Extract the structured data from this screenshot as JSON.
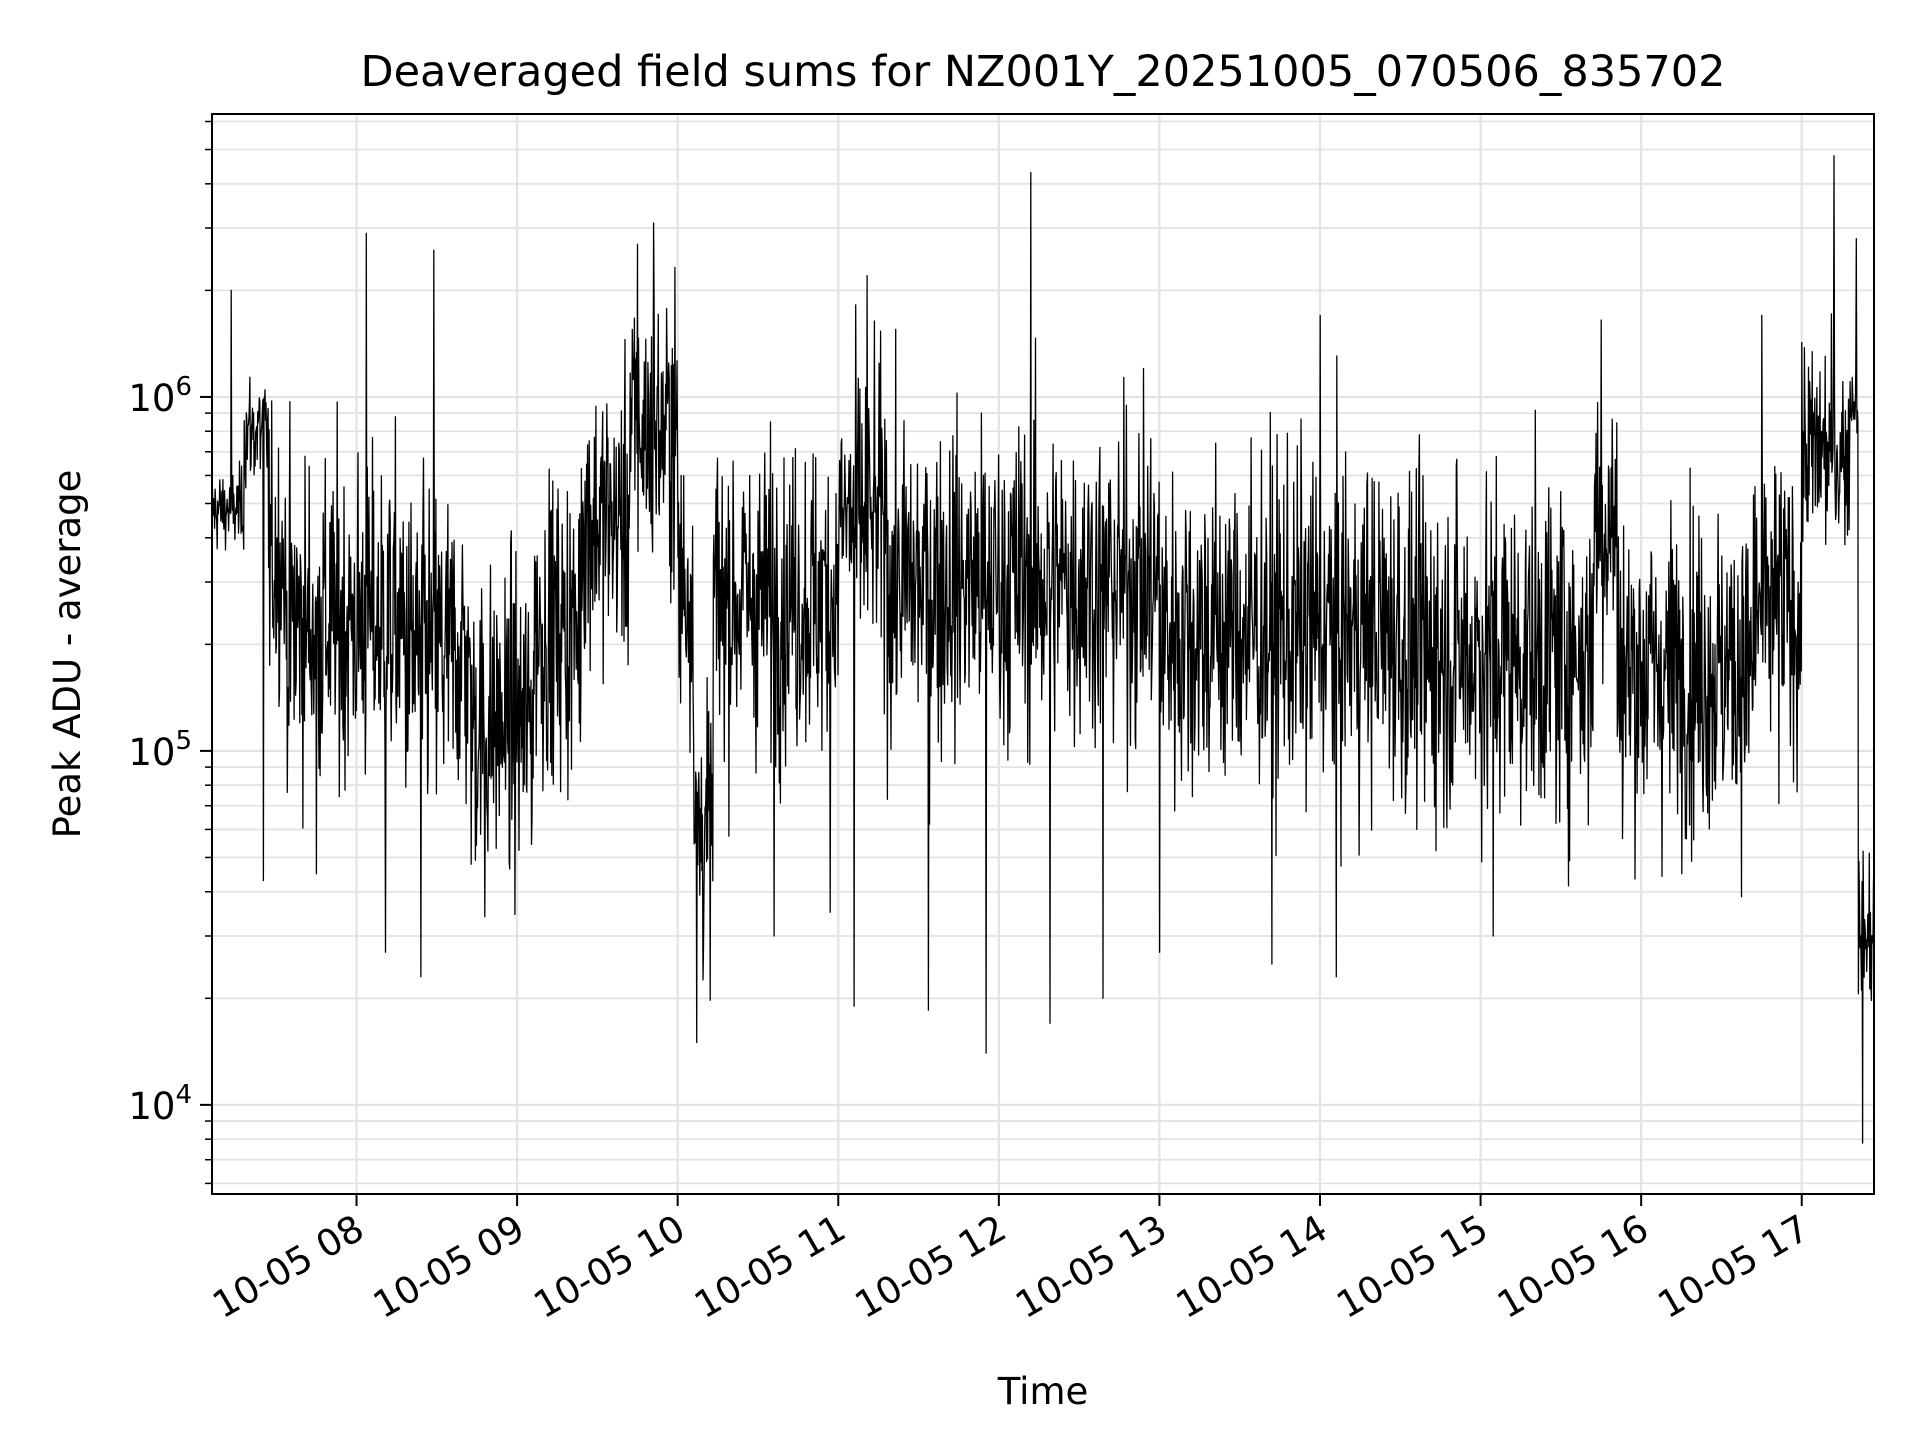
{
  "chart_data": {
    "type": "line",
    "title": "Deaveraged field sums for NZ001Y_20251005_070506_835702",
    "xlabel": "Time",
    "ylabel": "Peak ADU - average",
    "yscale": "log",
    "ylim": [
      5600,
      6300000
    ],
    "xlim_hours": [
      7.1,
      17.45
    ],
    "grid": true,
    "line_color": "#000000",
    "grid_color": "#e3e3e3",
    "x_ticks": [
      {
        "hour": 8,
        "label": "10-05 08"
      },
      {
        "hour": 9,
        "label": "10-05 09"
      },
      {
        "hour": 10,
        "label": "10-05 10"
      },
      {
        "hour": 11,
        "label": "10-05 11"
      },
      {
        "hour": 12,
        "label": "10-05 12"
      },
      {
        "hour": 13,
        "label": "10-05 13"
      },
      {
        "hour": 14,
        "label": "10-05 14"
      },
      {
        "hour": 15,
        "label": "10-05 15"
      },
      {
        "hour": 16,
        "label": "10-05 16"
      },
      {
        "hour": 17,
        "label": "10-05 17"
      }
    ],
    "y_ticks": [
      {
        "value": 10000,
        "base": "10",
        "exp": "4"
      },
      {
        "value": 100000,
        "base": "10",
        "exp": "5"
      },
      {
        "value": 1000000,
        "base": "10",
        "exp": "6"
      }
    ],
    "series": [
      {
        "name": "Peak ADU - average",
        "segments": [
          {
            "t0": 7.1,
            "t1": 7.3,
            "median": 480000,
            "spread": 0.08
          },
          {
            "t0": 7.3,
            "t1": 7.45,
            "median": 800000,
            "spread": 0.12
          },
          {
            "t0": 7.45,
            "t1": 7.55,
            "median": 350000,
            "spread": 0.25
          },
          {
            "t0": 7.55,
            "t1": 8.3,
            "median": 230000,
            "spread": 0.32
          },
          {
            "t0": 8.3,
            "t1": 8.7,
            "median": 190000,
            "spread": 0.32
          },
          {
            "t0": 8.7,
            "t1": 9.1,
            "median": 120000,
            "spread": 0.3
          },
          {
            "t0": 9.1,
            "t1": 9.4,
            "median": 220000,
            "spread": 0.3
          },
          {
            "t0": 9.4,
            "t1": 9.7,
            "median": 450000,
            "spread": 0.28
          },
          {
            "t0": 9.7,
            "t1": 10.0,
            "median": 800000,
            "spread": 0.28
          },
          {
            "t0": 10.0,
            "t1": 10.1,
            "median": 300000,
            "spread": 0.3
          },
          {
            "t0": 10.1,
            "t1": 10.22,
            "median": 60000,
            "spread": 0.28
          },
          {
            "t0": 10.22,
            "t1": 11.0,
            "median": 270000,
            "spread": 0.3
          },
          {
            "t0": 11.0,
            "t1": 11.3,
            "median": 450000,
            "spread": 0.3
          },
          {
            "t0": 11.3,
            "t1": 13.0,
            "median": 300000,
            "spread": 0.32
          },
          {
            "t0": 13.0,
            "t1": 14.5,
            "median": 220000,
            "spread": 0.34
          },
          {
            "t0": 14.5,
            "t1": 15.7,
            "median": 190000,
            "spread": 0.34
          },
          {
            "t0": 15.7,
            "t1": 15.85,
            "median": 450000,
            "spread": 0.28
          },
          {
            "t0": 15.85,
            "t1": 16.7,
            "median": 170000,
            "spread": 0.32
          },
          {
            "t0": 16.7,
            "t1": 17.0,
            "median": 250000,
            "spread": 0.32
          },
          {
            "t0": 17.0,
            "t1": 17.3,
            "median": 700000,
            "spread": 0.2
          },
          {
            "t0": 17.3,
            "t1": 17.35,
            "median": 1000000,
            "spread": 0.08
          },
          {
            "t0": 17.35,
            "t1": 17.45,
            "median": 30000,
            "spread": 0.15
          }
        ],
        "spikes": [
          {
            "t": 7.22,
            "v": 2000000
          },
          {
            "t": 7.42,
            "v": 43000
          },
          {
            "t": 7.75,
            "v": 45000
          },
          {
            "t": 8.06,
            "v": 2900000
          },
          {
            "t": 8.18,
            "v": 27000
          },
          {
            "t": 8.4,
            "v": 23000
          },
          {
            "t": 8.48,
            "v": 2600000
          },
          {
            "t": 8.8,
            "v": 34000
          },
          {
            "t": 9.75,
            "v": 2700000
          },
          {
            "t": 9.85,
            "v": 3100000
          },
          {
            "t": 10.12,
            "v": 15000
          },
          {
            "t": 10.6,
            "v": 30000
          },
          {
            "t": 10.95,
            "v": 35000
          },
          {
            "t": 11.1,
            "v": 19000
          },
          {
            "t": 11.18,
            "v": 2200000
          },
          {
            "t": 11.56,
            "v": 18500
          },
          {
            "t": 11.92,
            "v": 14000
          },
          {
            "t": 12.2,
            "v": 4300000
          },
          {
            "t": 12.32,
            "v": 17000
          },
          {
            "t": 12.65,
            "v": 20000
          },
          {
            "t": 13.0,
            "v": 27000
          },
          {
            "t": 13.7,
            "v": 25000
          },
          {
            "t": 14.1,
            "v": 23000
          },
          {
            "t": 14.0,
            "v": 1700000
          },
          {
            "t": 15.08,
            "v": 30000
          },
          {
            "t": 15.75,
            "v": 1650000
          },
          {
            "t": 16.75,
            "v": 1700000
          },
          {
            "t": 17.2,
            "v": 4800000
          },
          {
            "t": 17.34,
            "v": 2800000
          },
          {
            "t": 17.38,
            "v": 7800
          }
        ],
        "end_value": 48000
      }
    ]
  }
}
